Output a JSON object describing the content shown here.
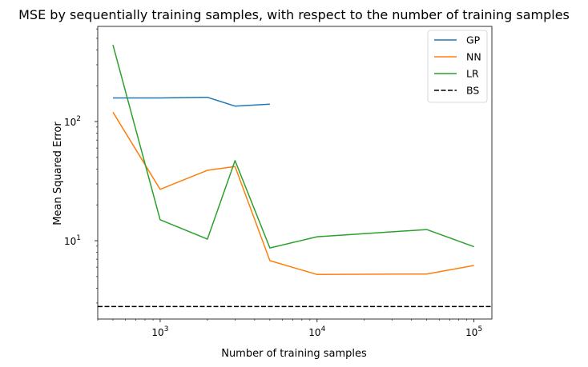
{
  "chart_data": {
    "type": "line",
    "title": "MSE by sequentially training samples, with respect to the number of training samples",
    "xlabel": "Number of training samples",
    "ylabel": "Mean Squared Error",
    "xscale": "log",
    "yscale": "log",
    "xlim": [
      400,
      130000
    ],
    "ylim": [
      2.2,
      630
    ],
    "x_ticks": [
      {
        "value": 1000,
        "base": "10",
        "exp": "3"
      },
      {
        "value": 10000,
        "base": "10",
        "exp": "4"
      },
      {
        "value": 100000,
        "base": "10",
        "exp": "5"
      }
    ],
    "y_ticks": [
      {
        "value": 10,
        "base": "10",
        "exp": "1"
      },
      {
        "value": 100,
        "base": "10",
        "exp": "2"
      }
    ],
    "legend_position": "top-right",
    "grid": false,
    "series": [
      {
        "name": "GP",
        "color": "#1f77b4",
        "dashed": false,
        "x": [
          500,
          1000,
          2000,
          3000,
          5000
        ],
        "y": [
          158,
          158,
          160,
          135,
          140
        ]
      },
      {
        "name": "NN",
        "color": "#ff7f0e",
        "dashed": false,
        "x": [
          500,
          1000,
          2000,
          3000,
          5000,
          10000,
          50000,
          100000
        ],
        "y": [
          120,
          27,
          39,
          42,
          6.8,
          5.2,
          5.25,
          6.2
        ]
      },
      {
        "name": "LR",
        "color": "#2ca02c",
        "dashed": false,
        "x": [
          500,
          1000,
          2000,
          3000,
          5000,
          10000,
          50000,
          100000
        ],
        "y": [
          440,
          15,
          10.3,
          47,
          8.7,
          10.8,
          12.4,
          8.9
        ]
      },
      {
        "name": "BS",
        "color": "#000000",
        "dashed": true,
        "x": [
          400,
          130000
        ],
        "y": [
          2.8,
          2.8
        ]
      }
    ]
  }
}
